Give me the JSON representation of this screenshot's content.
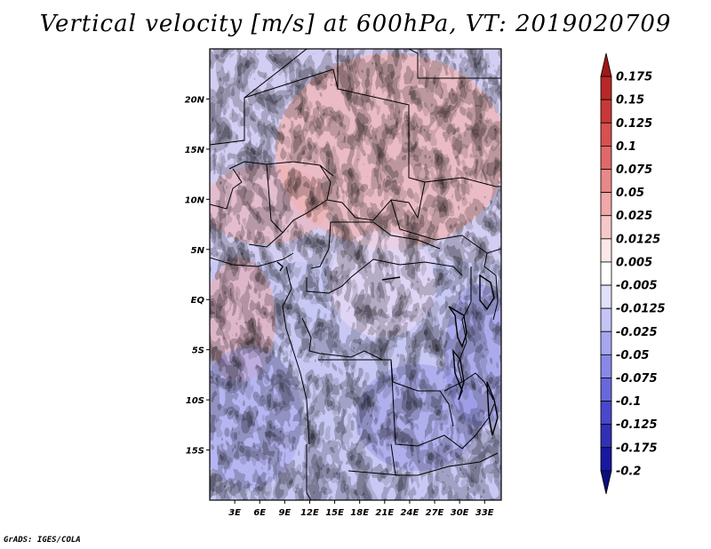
{
  "title": "Vertical velocity [m/s] at 600hPa, VT: 2019020709",
  "footer": "GrADS: IGES/COLA",
  "colors": {
    "positive": "#e06060",
    "negative": "#6060e0",
    "border": "#000000"
  },
  "chart_data": {
    "type": "heatmap",
    "variable": "Vertical velocity",
    "units": "m/s",
    "level": "600hPa",
    "valid_time": "2019020709",
    "x_ticks": [
      "3E",
      "6E",
      "9E",
      "12E",
      "15E",
      "18E",
      "21E",
      "24E",
      "27E",
      "30E",
      "33E"
    ],
    "x_values": [
      3,
      6,
      9,
      12,
      15,
      18,
      21,
      24,
      27,
      30,
      33
    ],
    "y_ticks": [
      "20N",
      "15N",
      "10N",
      "5N",
      "EQ",
      "5S",
      "10S",
      "15S"
    ],
    "y_values": [
      20,
      15,
      10,
      5,
      0,
      -5,
      -10,
      -15
    ],
    "xlim": [
      0,
      35
    ],
    "ylim": [
      -20,
      25
    ],
    "colorbar": {
      "labels": [
        "0.175",
        "0.15",
        "0.125",
        "0.1",
        "0.075",
        "0.05",
        "0.025",
        "0.0125",
        "0.005",
        "-0.005",
        "-0.0125",
        "-0.025",
        "-0.05",
        "-0.075",
        "-0.1",
        "-0.125",
        "-0.175",
        "-0.2"
      ],
      "colors": [
        "#a01818",
        "#b82828",
        "#c83838",
        "#d85050",
        "#e06868",
        "#e88888",
        "#f0a8a8",
        "#f8c8c8",
        "#fde8e8",
        "#ffffff",
        "#e0e0fb",
        "#c4c4f6",
        "#a6a6f0",
        "#8888e6",
        "#6868dc",
        "#4848cc",
        "#3030b4",
        "#1818a0",
        "#0c0c80"
      ],
      "extend": "both"
    }
  }
}
